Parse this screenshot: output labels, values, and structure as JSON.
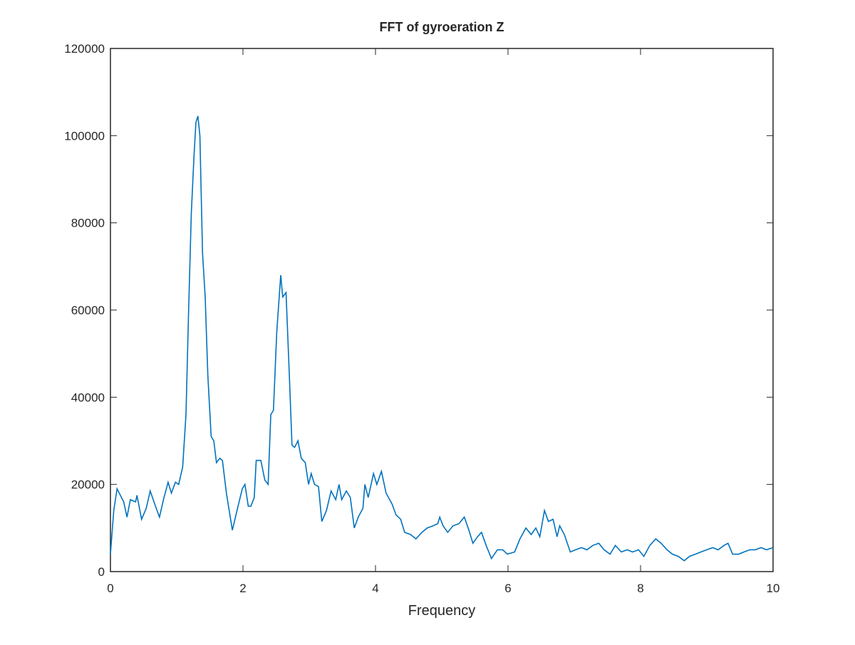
{
  "chart_data": {
    "type": "line",
    "title": "FFT of gyroeration Z",
    "xlabel": "Frequency",
    "xlim": [
      0,
      10
    ],
    "ylim": [
      0,
      120000
    ],
    "xticks": [
      0,
      2,
      4,
      6,
      8,
      10
    ],
    "yticks": [
      0,
      20000,
      40000,
      60000,
      80000,
      100000,
      120000
    ],
    "grid": false,
    "series": [
      {
        "color": "#0072bd",
        "x": [
          0,
          0.05,
          0.1,
          0.2,
          0.25,
          0.3,
          0.38,
          0.4,
          0.47,
          0.54,
          0.6,
          0.68,
          0.74,
          0.8,
          0.87,
          0.92,
          0.98,
          1.03,
          1.09,
          1.14,
          1.18,
          1.22,
          1.26,
          1.29,
          1.32,
          1.35,
          1.39,
          1.43,
          1.47,
          1.52,
          1.56,
          1.6,
          1.65,
          1.69,
          1.75,
          1.84,
          1.91,
          1.99,
          2.03,
          2.08,
          2.12,
          2.17,
          2.2,
          2.27,
          2.33,
          2.38,
          2.42,
          2.46,
          2.51,
          2.57,
          2.6,
          2.65,
          2.7,
          2.74,
          2.78,
          2.83,
          2.88,
          2.94,
          2.99,
          3.03,
          3.08,
          3.14,
          3.19,
          3.26,
          3.33,
          3.4,
          3.45,
          3.49,
          3.56,
          3.62,
          3.68,
          3.74,
          3.81,
          3.84,
          3.89,
          3.97,
          4.02,
          4.09,
          4.16,
          4.25,
          4.31,
          4.38,
          4.44,
          4.53,
          4.61,
          4.7,
          4.78,
          4.87,
          4.94,
          4.97,
          5.02,
          5.09,
          5.17,
          5.26,
          5.34,
          5.41,
          5.47,
          5.54,
          5.6,
          5.67,
          5.75,
          5.84,
          5.92,
          5.99,
          6.1,
          6.18,
          6.27,
          6.35,
          6.42,
          6.48,
          6.55,
          6.61,
          6.68,
          6.74,
          6.78,
          6.85,
          6.94,
          7.02,
          7.11,
          7.19,
          7.28,
          7.37,
          7.45,
          7.54,
          7.62,
          7.71,
          7.8,
          7.88,
          7.97,
          8.05,
          8.14,
          8.23,
          8.31,
          8.4,
          8.48,
          8.57,
          8.66,
          8.74,
          8.83,
          8.91,
          9.0,
          9.09,
          9.17,
          9.26,
          9.32,
          9.39,
          9.48,
          9.56,
          9.65,
          9.73,
          9.82,
          9.9,
          10
        ],
        "values": [
          4000,
          14000,
          19000,
          16000,
          12500,
          16500,
          16000,
          17500,
          12000,
          14500,
          18500,
          15000,
          12500,
          16500,
          20500,
          18000,
          20500,
          20000,
          24000,
          36000,
          60000,
          82000,
          95000,
          103000,
          104500,
          100000,
          73000,
          63000,
          45000,
          31000,
          30000,
          25000,
          26000,
          25500,
          18000,
          9500,
          14000,
          19000,
          20000,
          15000,
          15000,
          17000,
          25500,
          25500,
          21000,
          20000,
          36000,
          37000,
          55000,
          68000,
          63000,
          64000,
          45000,
          29000,
          28500,
          30000,
          26000,
          25000,
          20000,
          22500,
          20000,
          19500,
          11500,
          14000,
          18500,
          16500,
          20000,
          16500,
          18500,
          17000,
          10000,
          12500,
          14500,
          20000,
          17000,
          22500,
          20000,
          23000,
          18000,
          15500,
          13000,
          12000,
          9000,
          8500,
          7500,
          9000,
          10000,
          10500,
          11000,
          12500,
          10500,
          9000,
          10500,
          11000,
          12500,
          9500,
          6500,
          8000,
          9000,
          6000,
          3000,
          5000,
          5000,
          4000,
          4500,
          7500,
          10000,
          8500,
          10000,
          8000,
          14000,
          11500,
          12000,
          8000,
          10500,
          8500,
          4500,
          5000,
          5500,
          5000,
          6000,
          6500,
          5000,
          4000,
          6000,
          4500,
          5000,
          4500,
          5000,
          3500,
          6000,
          7500,
          6500,
          5000,
          4000,
          3500,
          2500,
          3500,
          4000,
          4500,
          5000,
          5500,
          5000,
          6000,
          6500,
          4000,
          4000,
          4500,
          5000,
          5000,
          5500,
          5000,
          5500
        ]
      }
    ]
  }
}
